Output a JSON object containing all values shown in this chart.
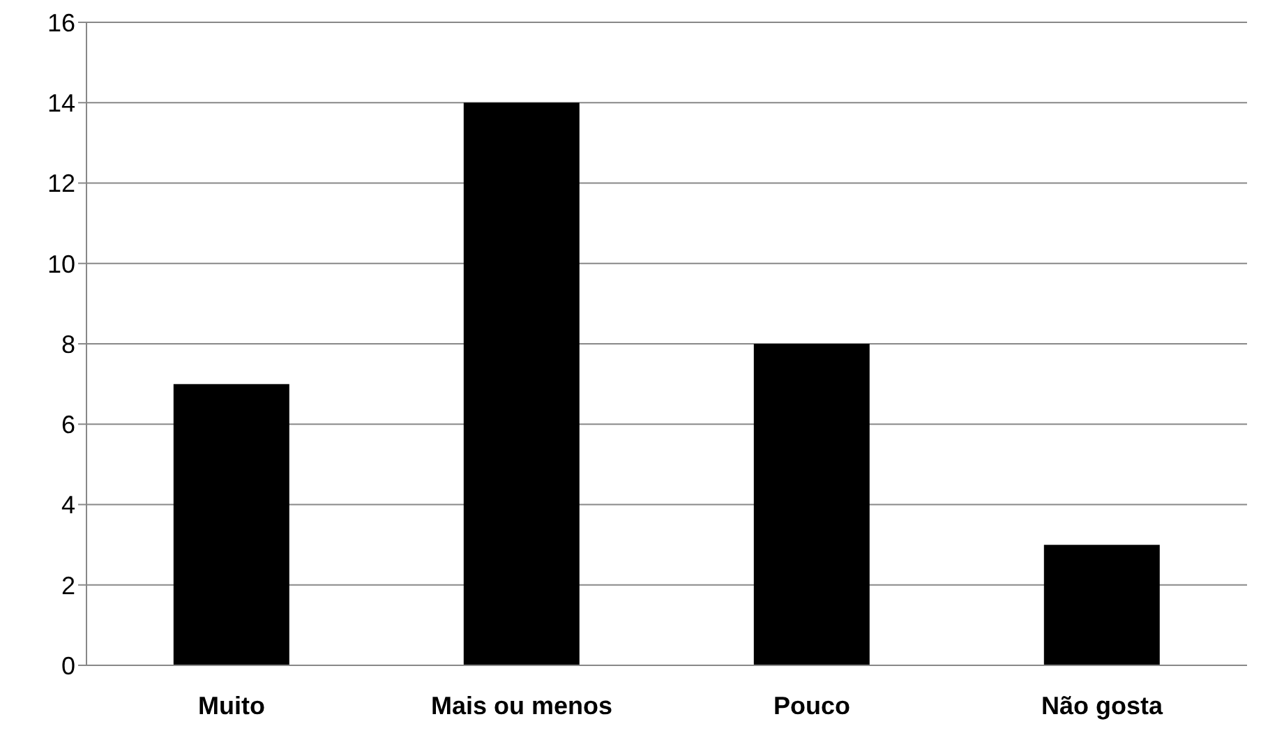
{
  "chart_data": {
    "type": "bar",
    "categories": [
      "Muito",
      "Mais ou menos",
      "Pouco",
      "Não gosta"
    ],
    "values": [
      7,
      14,
      8,
      3
    ],
    "color": "#000000",
    "ylim": [
      0,
      16
    ],
    "yticks": [
      0,
      2,
      4,
      6,
      8,
      10,
      12,
      14,
      16
    ],
    "grid": "y",
    "legend": false
  }
}
